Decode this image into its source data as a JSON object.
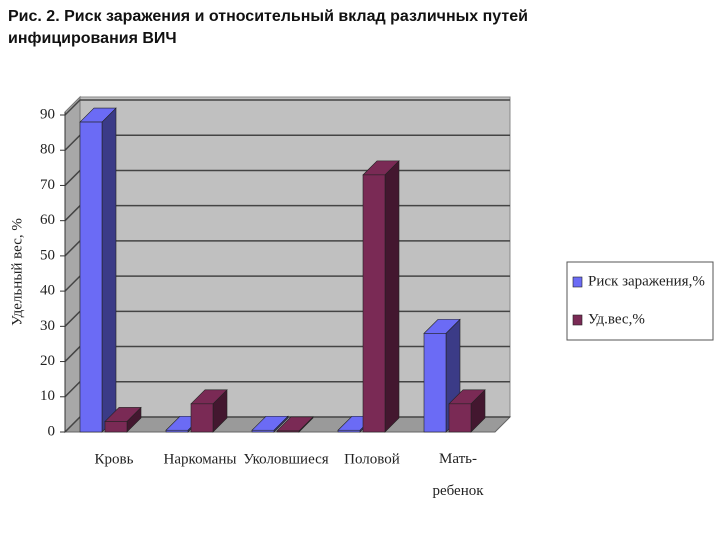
{
  "chart_data": {
    "type": "bar3d",
    "title": "Рис. 2. Риск заражения и относительный вклад различных путей инфицирования ВИЧ",
    "y_label": "Удельный вес, %",
    "categories": [
      "Кровь",
      "Наркоманы",
      "Уколовшиеся",
      "Половой",
      "Мать- ребенок"
    ],
    "series": [
      {
        "name": "Риск заражения,%",
        "color": "#6b6bf5",
        "values": [
          88,
          0.5,
          0.5,
          0.5,
          28
        ]
      },
      {
        "name": "Уд.вес,%",
        "color": "#7a2a55",
        "values": [
          3,
          8,
          0.3,
          73,
          8
        ]
      }
    ],
    "ylim": [
      0,
      90
    ],
    "yticks": [
      0,
      10,
      20,
      30,
      40,
      50,
      60,
      70,
      80,
      90
    ],
    "grid": true
  }
}
